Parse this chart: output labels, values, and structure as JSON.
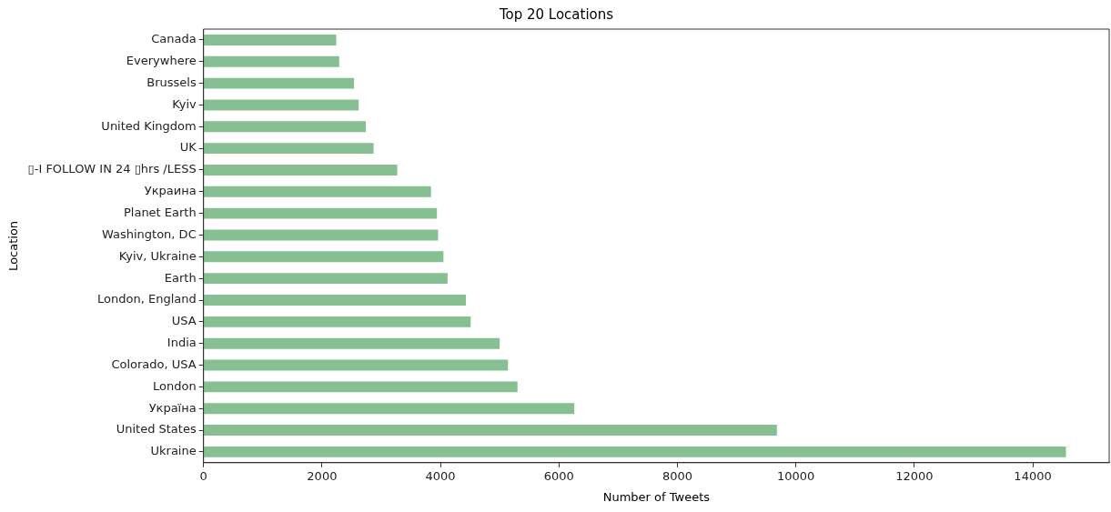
{
  "chart_data": {
    "type": "bar",
    "orientation": "horizontal",
    "title": "Top 20 Locations",
    "xlabel": "Number of Tweets",
    "ylabel": "Location",
    "categories": [
      "Canada",
      "Everywhere",
      "Brussels",
      "Kyiv",
      "United Kingdom",
      "UK",
      "▯-I FOLLOW IN 24 ▯hrs /LESS",
      "Украина",
      "Planet Earth",
      "Washington, DC",
      "Kyiv, Ukraine",
      "Earth",
      "London, England",
      "USA",
      "India",
      "Colorado, USA",
      "London",
      "Україна",
      "United States",
      "Ukraine"
    ],
    "values": [
      2240,
      2290,
      2540,
      2620,
      2740,
      2870,
      3270,
      3840,
      3940,
      3960,
      4050,
      4120,
      4430,
      4510,
      5000,
      5140,
      5300,
      6260,
      9680,
      14560
    ],
    "color": "#86bf91",
    "xlim": [
      0,
      15290
    ],
    "xticks": [
      0,
      2000,
      4000,
      6000,
      8000,
      10000,
      12000,
      14000
    ],
    "grid": false,
    "legend": false
  }
}
